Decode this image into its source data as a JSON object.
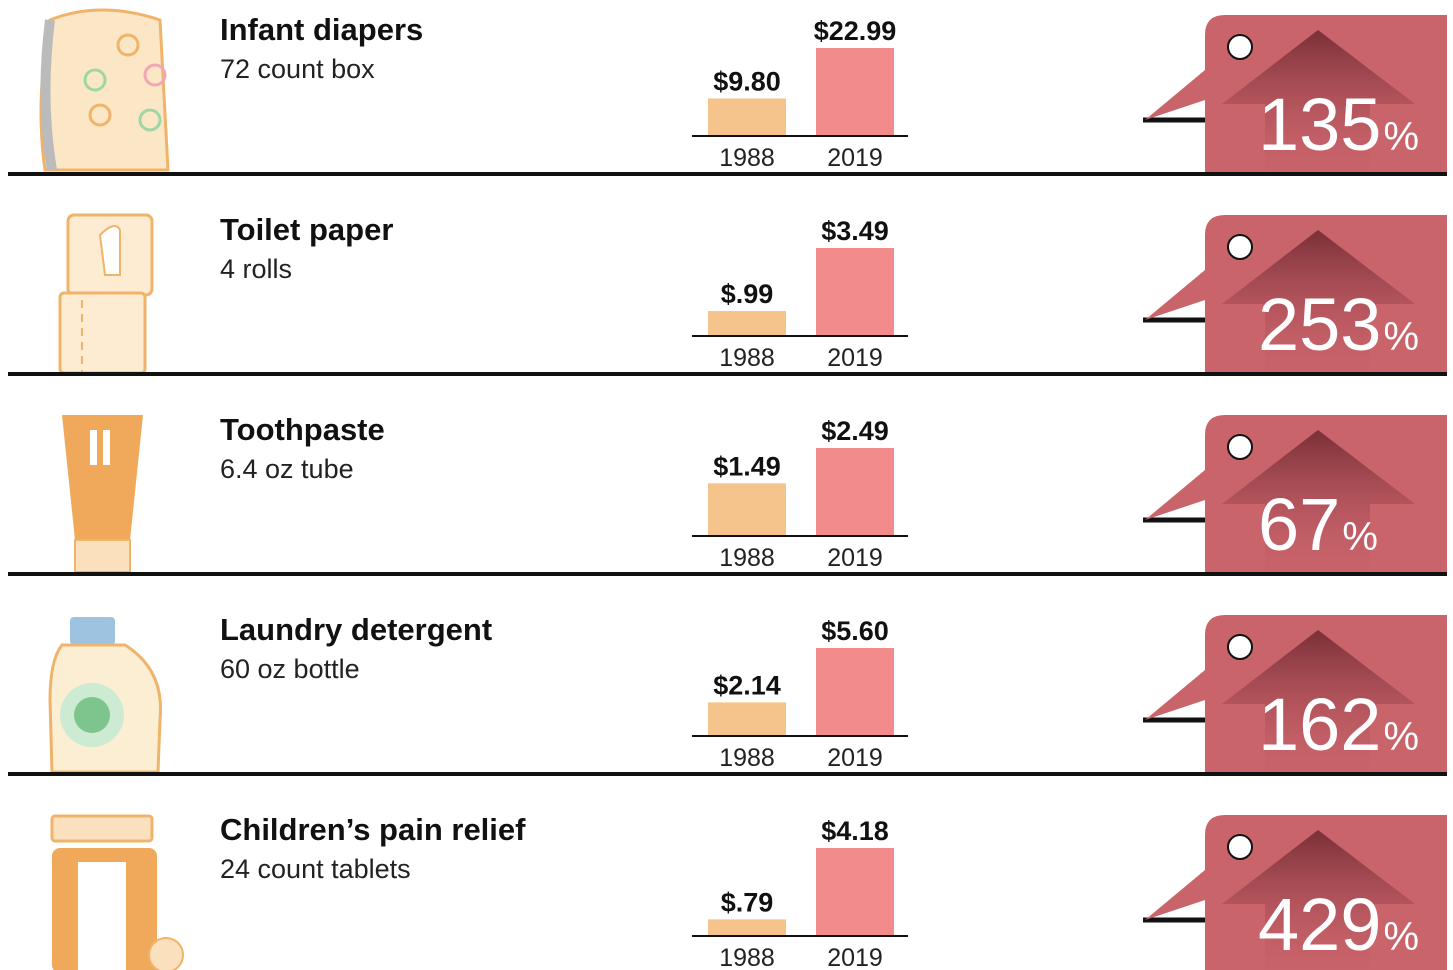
{
  "chart_data": [
    {
      "type": "bar",
      "title": "Infant diapers",
      "subtitle": "72 count box",
      "categories": [
        "1988",
        "2019"
      ],
      "values": [
        9.8,
        22.99
      ],
      "value_labels": [
        "$9.80",
        "$22.99"
      ],
      "colors": [
        "#f5c48c",
        "#f28b8c"
      ],
      "change": 135,
      "change_unit": "%"
    },
    {
      "type": "bar",
      "title": "Toilet paper",
      "subtitle": "4 rolls",
      "categories": [
        "1988",
        "2019"
      ],
      "values": [
        0.99,
        3.49
      ],
      "value_labels": [
        "$.99",
        "$3.49"
      ],
      "colors": [
        "#f5c48c",
        "#f28b8c"
      ],
      "change": 253,
      "change_unit": "%"
    },
    {
      "type": "bar",
      "title": "Toothpaste",
      "subtitle": "6.4 oz tube",
      "categories": [
        "1988",
        "2019"
      ],
      "values": [
        1.49,
        2.49
      ],
      "value_labels": [
        "$1.49",
        "$2.49"
      ],
      "colors": [
        "#f5c48c",
        "#f28b8c"
      ],
      "change": 67,
      "change_unit": "%"
    },
    {
      "type": "bar",
      "title": "Laundry detergent",
      "subtitle": "60 oz bottle",
      "categories": [
        "1988",
        "2019"
      ],
      "values": [
        2.14,
        5.6
      ],
      "value_labels": [
        "$2.14",
        "$5.60"
      ],
      "colors": [
        "#f5c48c",
        "#f28b8c"
      ],
      "change": 162,
      "change_unit": "%"
    },
    {
      "type": "bar",
      "title": "Children’s pain relief",
      "subtitle": "24 count tablets",
      "categories": [
        "1988",
        "2019"
      ],
      "values": [
        0.79,
        4.18
      ],
      "value_labels": [
        "$.79",
        "$4.18"
      ],
      "colors": [
        "#f5c48c",
        "#f28b8c"
      ],
      "change": 429,
      "change_unit": "%"
    }
  ]
}
